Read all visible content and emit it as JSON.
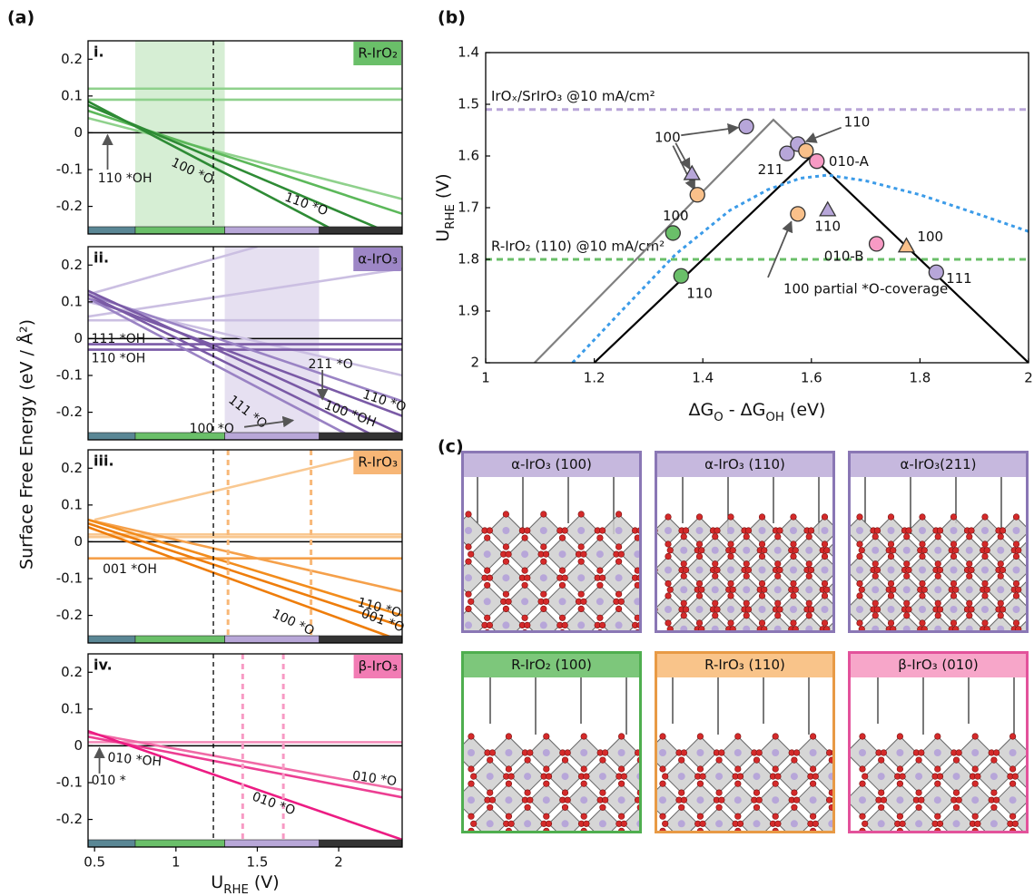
{
  "chart_data": [
    {
      "type": "line",
      "panel_label": "(a)",
      "y_label": "Surface Free Energy (eV / Å²)",
      "label": "i.",
      "material": "R-IrO₂",
      "material_color": "#6abf69",
      "xlim": [
        0.46,
        2.39
      ],
      "ylim": [
        -0.275,
        0.25
      ],
      "yticks": [
        -0.2,
        -0.1,
        0,
        0.1,
        0.2
      ],
      "reference_x": 1.23,
      "shade": [
        0.75,
        1.3
      ],
      "shade_color": "#d6eed4",
      "phase_edges": [
        0.75,
        1.3,
        1.88
      ],
      "phase_colors": [
        "#5a8795",
        "#6abf69",
        "#b8a7d8",
        "#333333"
      ],
      "lines": [
        {
          "color": "#8fd18c",
          "x": [
            0.46,
            2.39
          ],
          "values": [
            0.12,
            0.12
          ]
        },
        {
          "color": "#8fd18c",
          "x": [
            0.46,
            2.39
          ],
          "values": [
            0.09,
            0.09
          ]
        },
        {
          "color": "#8fd18c",
          "x": [
            0.46,
            2.39
          ],
          "values": [
            0.04,
            -0.18
          ]
        },
        {
          "color": "#5cb85a",
          "x": [
            0.46,
            2.39
          ],
          "values": [
            0.06,
            -0.22
          ]
        },
        {
          "color": "#2e8b35",
          "x": [
            0.46,
            2.3
          ],
          "values": [
            0.075,
            -0.27
          ]
        },
        {
          "color": "#2e8b35",
          "x": [
            0.46,
            1.95
          ],
          "values": [
            0.085,
            -0.26
          ]
        }
      ],
      "annotations": [
        "110 *OH",
        "100 *O",
        "110 *O"
      ]
    },
    {
      "type": "line",
      "label": "ii.",
      "material": "α-IrO₃",
      "material_color": "#9d86c6",
      "xlim": [
        0.46,
        2.39
      ],
      "ylim": [
        -0.275,
        0.25
      ],
      "yticks": [
        -0.2,
        -0.1,
        0,
        0.1,
        0.2
      ],
      "reference_x": 1.23,
      "shade": [
        1.3,
        1.88
      ],
      "shade_color": "#e6e0f1",
      "lines": [
        {
          "color": "#cbbfe2",
          "x": [
            0.46,
            2.39
          ],
          "values": [
            0.06,
            0.19
          ]
        },
        {
          "color": "#cbbfe2",
          "x": [
            0.46,
            1.5
          ],
          "values": [
            0.12,
            0.25
          ]
        },
        {
          "color": "#cbbfe2",
          "x": [
            0.46,
            2.39
          ],
          "values": [
            0.05,
            0.05
          ]
        },
        {
          "color": "#cbbfe2",
          "x": [
            0.46,
            2.39
          ],
          "values": [
            0.1,
            -0.1
          ]
        },
        {
          "color": "#7a5aa6",
          "x": [
            0.46,
            2.39
          ],
          "values": [
            -0.015,
            -0.015
          ]
        },
        {
          "color": "#7a5aa6",
          "x": [
            0.46,
            2.39
          ],
          "values": [
            -0.03,
            -0.03
          ]
        },
        {
          "color": "#9a83c4",
          "x": [
            0.46,
            2.39
          ],
          "values": [
            0.12,
            -0.17
          ]
        },
        {
          "color": "#7a5aa6",
          "x": [
            0.46,
            2.39
          ],
          "values": [
            0.11,
            -0.21
          ]
        },
        {
          "color": "#7a5aa6",
          "x": [
            0.46,
            2.39
          ],
          "values": [
            0.13,
            -0.26
          ]
        },
        {
          "color": "#7a5aa6",
          "x": [
            0.46,
            2.2
          ],
          "values": [
            0.12,
            -0.26
          ]
        },
        {
          "color": "#9a83c4",
          "x": [
            0.46,
            2.05
          ],
          "values": [
            0.11,
            -0.26
          ]
        }
      ],
      "annotations": [
        "111 *OH",
        "110 *OH",
        "211 *O",
        "111 *O",
        "100 *O",
        "110 *O",
        "100 *OH"
      ]
    },
    {
      "type": "line",
      "label": "iii.",
      "material": "R-IrO₃",
      "material_color": "#f7b676",
      "xlim": [
        0.46,
        2.39
      ],
      "ylim": [
        -0.275,
        0.25
      ],
      "yticks": [
        -0.2,
        -0.1,
        0,
        0.1,
        0.2
      ],
      "reference_x": 1.23,
      "vlines": [
        1.32,
        1.83
      ],
      "vline_color": "#f8b878",
      "lines": [
        {
          "color": "#f9c891",
          "x": [
            0.5,
            2.3
          ],
          "values": [
            0.06,
            0.25
          ]
        },
        {
          "color": "#f9c891",
          "x": [
            0.46,
            2.39
          ],
          "values": [
            0.02,
            0.02
          ]
        },
        {
          "color": "#f9c891",
          "x": [
            0.46,
            2.39
          ],
          "values": [
            0.013,
            0.013
          ]
        },
        {
          "color": "#f5a04a",
          "x": [
            0.46,
            2.39
          ],
          "values": [
            -0.045,
            -0.045
          ]
        },
        {
          "color": "#f5a04a",
          "x": [
            0.46,
            2.39
          ],
          "values": [
            0.06,
            -0.135
          ]
        },
        {
          "color": "#f28c1c",
          "x": [
            0.46,
            2.39
          ],
          "values": [
            0.06,
            -0.2
          ]
        },
        {
          "color": "#ee7d0b",
          "x": [
            0.46,
            2.39
          ],
          "values": [
            0.05,
            -0.23
          ]
        },
        {
          "color": "#ee7d0b",
          "x": [
            0.46,
            2.39
          ],
          "values": [
            0.04,
            -0.27
          ]
        }
      ],
      "annotations": [
        "001 *OH",
        "100 *O",
        "110 *O",
        "001 *O"
      ]
    },
    {
      "type": "line",
      "label": "iv.",
      "material": "β-IrO₃",
      "material_color": "#f27cb4",
      "x_label": [
        "U",
        "RHE",
        " (V)"
      ],
      "xlim": [
        0.46,
        2.39
      ],
      "ylim": [
        -0.275,
        0.25
      ],
      "xticks": [
        0.5,
        1,
        1.5,
        2
      ],
      "yticks": [
        -0.2,
        -0.1,
        0,
        0.1,
        0.2
      ],
      "reference_x": 1.23,
      "vlines": [
        1.41,
        1.66
      ],
      "vline_color": "#f79ac4",
      "lines": [
        {
          "color": "#f48ab8",
          "x": [
            0.46,
            2.39
          ],
          "values": [
            0.01,
            0.01
          ]
        },
        {
          "color": "#f06aa6",
          "x": [
            0.46,
            2.39
          ],
          "values": [
            0.035,
            -0.12
          ]
        },
        {
          "color": "#ec3e92",
          "x": [
            0.46,
            2.39
          ],
          "values": [
            0.025,
            -0.14
          ]
        },
        {
          "color": "#ec1c83",
          "x": [
            0.46,
            2.39
          ],
          "values": [
            0.04,
            -0.255
          ]
        }
      ],
      "annotations": [
        "010 *OH",
        "010 *",
        "010 *O",
        "010 *O"
      ]
    },
    {
      "type": "scatter",
      "panel_label": "(b)",
      "x_label": [
        "ΔG",
        "O",
        " - ΔG",
        "OH",
        " (eV)"
      ],
      "y_label": [
        "U",
        "RHE",
        " (V)"
      ],
      "xlim": [
        1,
        2
      ],
      "ylim": [
        1.4,
        2
      ],
      "y_inverted": true,
      "xticks": [
        1,
        1.2,
        1.4,
        1.6,
        1.8,
        2
      ],
      "yticks": [
        1.4,
        1.5,
        1.6,
        1.7,
        1.8,
        1.9,
        2
      ],
      "reference_lines": [
        {
          "label": "IrOₓ/SrIrO₃ @10 mA/cm²",
          "value": 1.51,
          "color": "#b9a6d9"
        },
        {
          "label": "R-IrO₂ (110) @10 mA/cm²",
          "value": 1.8,
          "color": "#6abf69"
        }
      ],
      "curves": [
        {
          "color": "#000000",
          "x": [
            1.2,
            1.6,
            2
          ],
          "values": [
            2,
            1.6,
            2
          ]
        },
        {
          "color": "#808080",
          "x": [
            1.09,
            1.53,
            1.6
          ],
          "values": [
            2,
            1.53,
            1.6
          ]
        },
        {
          "color": "#3b9be8",
          "dashed": true,
          "x": [
            1.16,
            1.25,
            1.35,
            1.45,
            1.52,
            1.58,
            1.63,
            1.7,
            1.8,
            1.9,
            2
          ],
          "values": [
            2,
            1.9,
            1.79,
            1.705,
            1.665,
            1.643,
            1.637,
            1.648,
            1.675,
            1.71,
            1.746
          ]
        }
      ],
      "series": [
        {
          "marker": "circle",
          "color": "#b7a6d9",
          "x": [
            1.48,
            1.555,
            1.575,
            1.83
          ],
          "values": [
            1.543,
            1.595,
            1.577,
            1.825
          ]
        },
        {
          "marker": "triangle",
          "color": "#b7a6d9",
          "x": [
            1.38,
            1.63
          ],
          "values": [
            1.635,
            1.705
          ]
        },
        {
          "marker": "circle",
          "color": "#f9c08a",
          "x": [
            1.39,
            1.59,
            1.575
          ],
          "values": [
            1.675,
            1.59,
            1.712
          ]
        },
        {
          "marker": "triangle",
          "color": "#f9c08a",
          "x": [
            1.775
          ],
          "values": [
            1.775
          ]
        },
        {
          "marker": "circle",
          "color": "#6abf69",
          "x": [
            1.345,
            1.36
          ],
          "values": [
            1.749,
            1.832
          ]
        },
        {
          "marker": "circle",
          "color": "#f79ac4",
          "x": [
            1.61,
            1.72
          ],
          "values": [
            1.61,
            1.77
          ]
        }
      ],
      "annotations": [
        "100",
        "110",
        "211",
        "010-A",
        "100",
        "110",
        "100",
        "010-B",
        "110",
        "111",
        "100 partial *O-coverage"
      ]
    },
    {
      "type": "structures",
      "panel_label": "(c)",
      "panels": [
        {
          "title": "α-IrO₃ (100)",
          "color": "#c6b8de",
          "border": "#8a77b5"
        },
        {
          "title": "α-IrO₃ (110)",
          "color": "#c6b8de",
          "border": "#8a77b5"
        },
        {
          "title": "α-IrO₃(211)",
          "color": "#c6b8de",
          "border": "#8a77b5"
        },
        {
          "title": "R-IrO₂ (100)",
          "color": "#7dc77b",
          "border": "#4fae4f"
        },
        {
          "title": "R-IrO₃ (110)",
          "color": "#f9c48a",
          "border": "#e89a45"
        },
        {
          "title": "β-IrO₃ (010)",
          "color": "#f7a6c9",
          "border": "#e3529b"
        }
      ]
    }
  ]
}
